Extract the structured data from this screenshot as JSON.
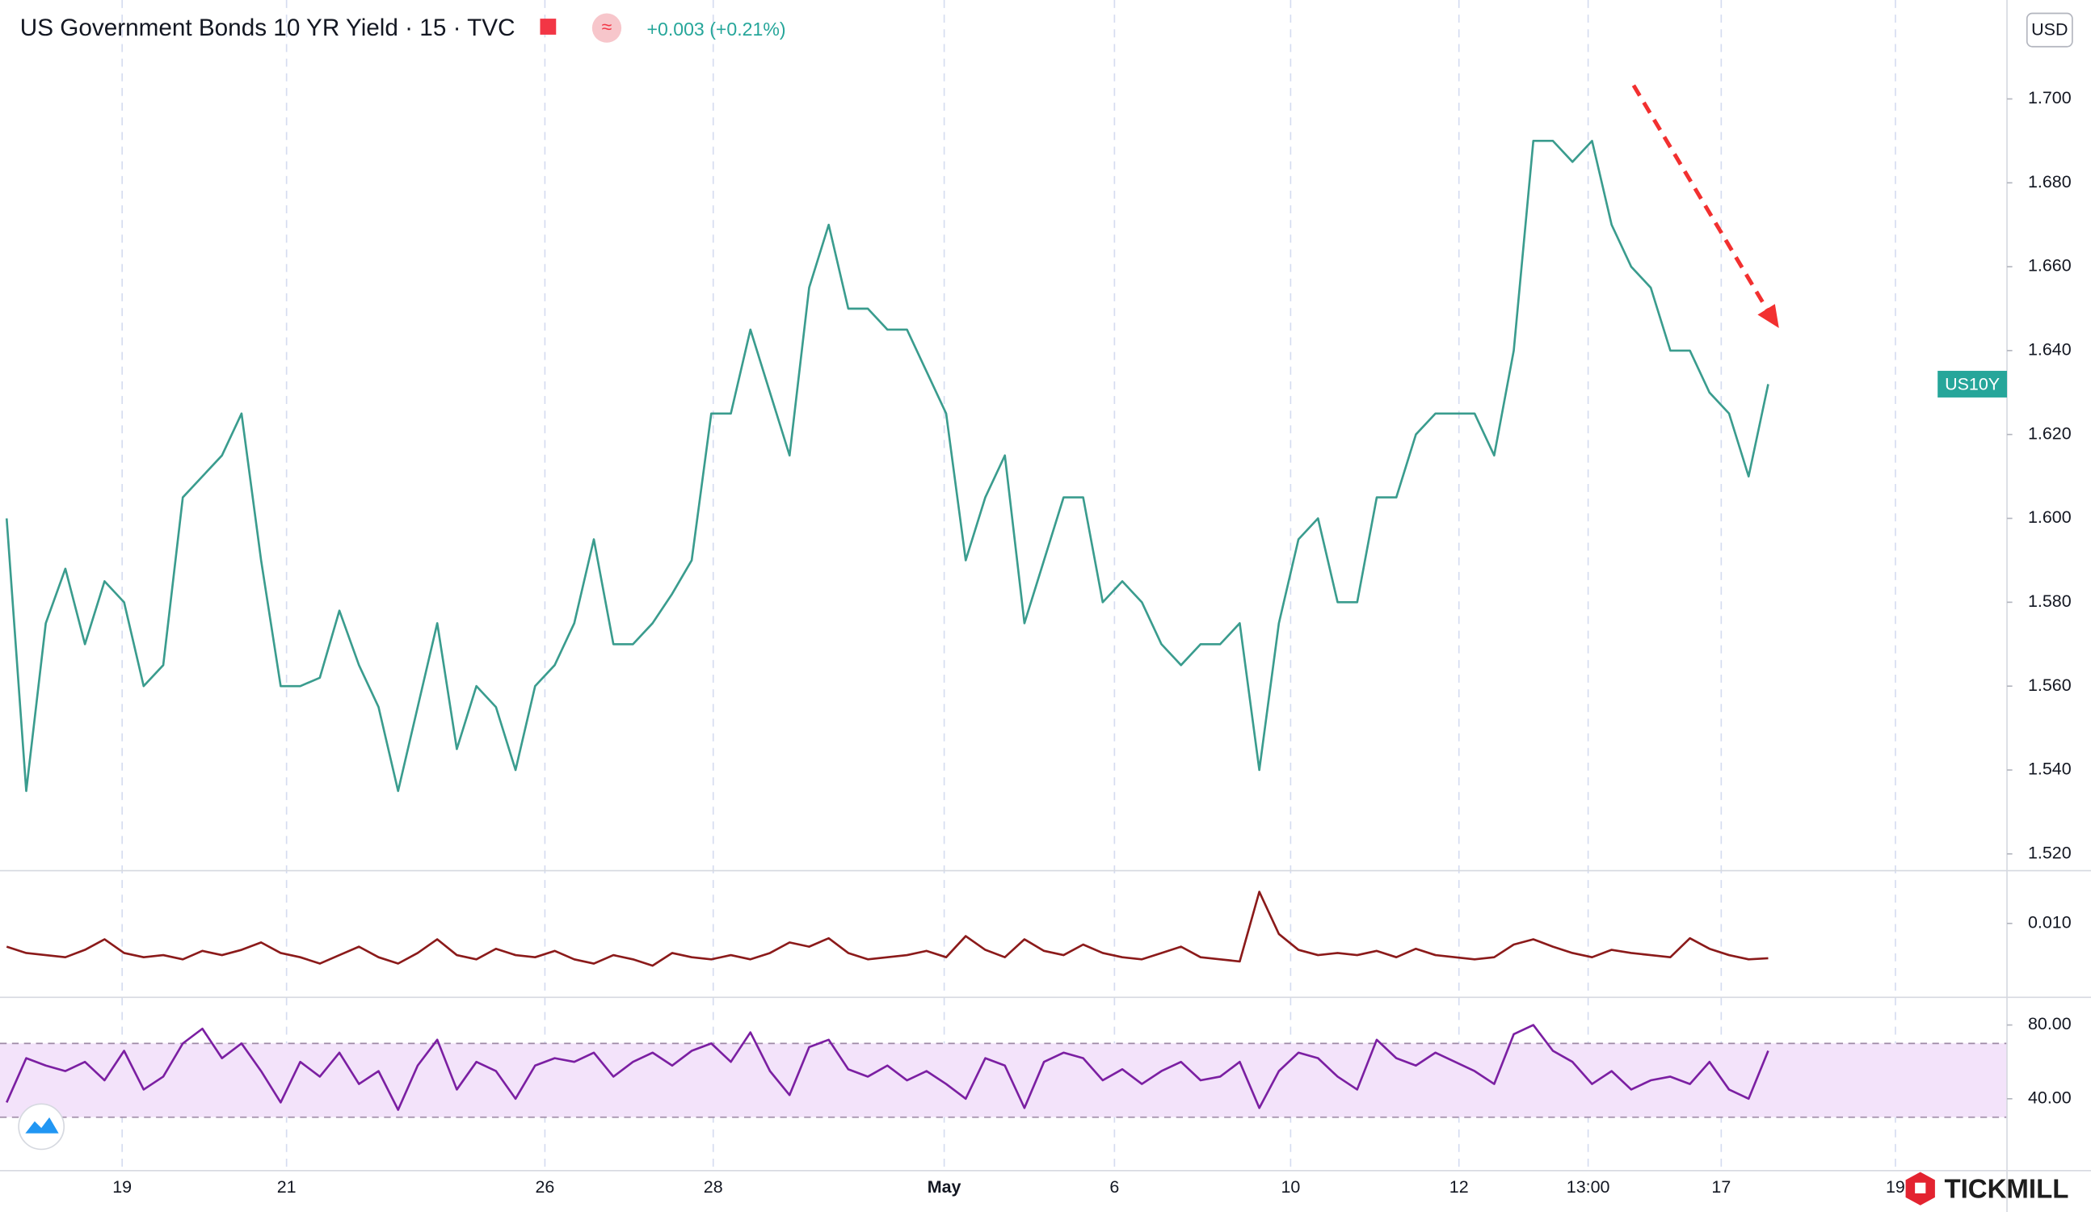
{
  "chart_data": [
    {
      "type": "line",
      "title": "US Government Bonds 10 YR Yield · 15 · TVC",
      "change_label": "+0.003 (+0.21%)",
      "currency": "USD",
      "symbol_label": "US10Y",
      "brand": "TICKMILL",
      "color": "#3a9c8e",
      "grid": true,
      "x": [
        0,
        1,
        2,
        3,
        4,
        5,
        6,
        7,
        8,
        9,
        10,
        11,
        12,
        13,
        14,
        15,
        16,
        17,
        18,
        19,
        20,
        21,
        22,
        23,
        24,
        25,
        26,
        27,
        28,
        29,
        30,
        31,
        32,
        33,
        34,
        35,
        36,
        37,
        38,
        39,
        40,
        41,
        42,
        43,
        44,
        45,
        46,
        47,
        48,
        49,
        50,
        51,
        52,
        53,
        54,
        55,
        56,
        57,
        58,
        59,
        60,
        61,
        62,
        63,
        64,
        65,
        66,
        67,
        68,
        69,
        70,
        71,
        72,
        73,
        74,
        75,
        76,
        77,
        78,
        79,
        80,
        81,
        82,
        83,
        84,
        85,
        86,
        87,
        88,
        89,
        90
      ],
      "values": [
        1.6,
        1.535,
        1.575,
        1.588,
        1.57,
        1.585,
        1.58,
        1.56,
        1.565,
        1.605,
        1.61,
        1.615,
        1.625,
        1.59,
        1.56,
        1.56,
        1.562,
        1.578,
        1.565,
        1.555,
        1.535,
        1.555,
        1.575,
        1.545,
        1.56,
        1.555,
        1.54,
        1.56,
        1.565,
        1.575,
        1.595,
        1.57,
        1.57,
        1.575,
        1.582,
        1.59,
        1.625,
        1.625,
        1.645,
        1.63,
        1.615,
        1.655,
        1.67,
        1.65,
        1.65,
        1.645,
        1.645,
        1.635,
        1.625,
        1.59,
        1.605,
        1.615,
        1.575,
        1.59,
        1.605,
        1.605,
        1.58,
        1.585,
        1.58,
        1.57,
        1.565,
        1.57,
        1.57,
        1.575,
        1.54,
        1.575,
        1.595,
        1.6,
        1.58,
        1.58,
        1.605,
        1.605,
        1.62,
        1.625,
        1.625,
        1.625,
        1.615,
        1.64,
        1.69,
        1.69,
        1.685,
        1.69,
        1.67,
        1.66,
        1.655,
        1.64,
        1.64,
        1.63,
        1.625,
        1.61,
        1.632
      ],
      "xlim": [
        -0.34,
        102.2
      ],
      "ylim": [
        1.516,
        1.722
      ],
      "xticks": [
        {
          "value": 5.9,
          "label": "19"
        },
        {
          "value": 14.3,
          "label": "21"
        },
        {
          "value": 27.5,
          "label": "26"
        },
        {
          "value": 36.1,
          "label": "28"
        },
        {
          "value": 47.9,
          "label": "May"
        },
        {
          "value": 56.6,
          "label": "6"
        },
        {
          "value": 65.6,
          "label": "10"
        },
        {
          "value": 74.2,
          "label": "12"
        },
        {
          "value": 80.8,
          "label": "13:00"
        },
        {
          "value": 87.6,
          "label": "17"
        },
        {
          "value": 96.5,
          "label": "19"
        }
      ],
      "yticks": [
        {
          "value": 1.52,
          "label": "1.520"
        },
        {
          "value": 1.54,
          "label": "1.540"
        },
        {
          "value": 1.56,
          "label": "1.560"
        },
        {
          "value": 1.58,
          "label": "1.580"
        },
        {
          "value": 1.6,
          "label": "1.600"
        },
        {
          "value": 1.62,
          "label": "1.620"
        },
        {
          "value": 1.64,
          "label": "1.640"
        },
        {
          "value": 1.66,
          "label": "1.660"
        },
        {
          "value": 1.68,
          "label": "1.680"
        },
        {
          "value": 1.7,
          "label": "1.700"
        }
      ]
    },
    {
      "type": "line",
      "color": "#8b1a1a",
      "x": [
        0,
        1,
        2,
        3,
        4,
        5,
        6,
        7,
        8,
        9,
        10,
        11,
        12,
        13,
        14,
        15,
        16,
        17,
        18,
        19,
        20,
        21,
        22,
        23,
        24,
        25,
        26,
        27,
        28,
        29,
        30,
        31,
        32,
        33,
        34,
        35,
        36,
        37,
        38,
        39,
        40,
        41,
        42,
        43,
        44,
        45,
        46,
        47,
        48,
        49,
        50,
        51,
        52,
        53,
        54,
        55,
        56,
        57,
        58,
        59,
        60,
        61,
        62,
        63,
        64,
        65,
        66,
        67,
        68,
        69,
        70,
        71,
        72,
        73,
        74,
        75,
        76,
        77,
        78,
        79,
        80,
        81,
        82,
        83,
        84,
        85,
        86,
        87,
        88,
        89,
        90
      ],
      "values": [
        0.0078,
        0.0072,
        0.007,
        0.0068,
        0.0075,
        0.0085,
        0.0072,
        0.0068,
        0.007,
        0.0066,
        0.0074,
        0.007,
        0.0075,
        0.0082,
        0.0072,
        0.0068,
        0.0062,
        0.007,
        0.0078,
        0.0068,
        0.0062,
        0.0072,
        0.0085,
        0.007,
        0.0066,
        0.0076,
        0.007,
        0.0068,
        0.0074,
        0.0066,
        0.0062,
        0.007,
        0.0066,
        0.006,
        0.0072,
        0.0068,
        0.0066,
        0.007,
        0.0066,
        0.0072,
        0.0082,
        0.0078,
        0.0086,
        0.0072,
        0.0066,
        0.0068,
        0.007,
        0.0074,
        0.0068,
        0.0088,
        0.0075,
        0.0068,
        0.0085,
        0.0074,
        0.007,
        0.008,
        0.0072,
        0.0068,
        0.0066,
        0.0072,
        0.0078,
        0.0068,
        0.0066,
        0.0064,
        0.013,
        0.009,
        0.0075,
        0.007,
        0.0072,
        0.007,
        0.0074,
        0.0068,
        0.0076,
        0.007,
        0.0068,
        0.0066,
        0.0068,
        0.008,
        0.0085,
        0.0078,
        0.0072,
        0.0068,
        0.0075,
        0.0072,
        0.007,
        0.0068,
        0.0086,
        0.0076,
        0.007,
        0.0066,
        0.0067
      ],
      "xlim": [
        -0.34,
        102.2
      ],
      "ylim": [
        0.003,
        0.015
      ],
      "yticks": [
        {
          "value": 0.01,
          "label": "0.010"
        }
      ]
    },
    {
      "type": "line",
      "color": "#7b1fa2",
      "band": [
        30,
        70
      ],
      "x": [
        0,
        1,
        2,
        3,
        4,
        5,
        6,
        7,
        8,
        9,
        10,
        11,
        12,
        13,
        14,
        15,
        16,
        17,
        18,
        19,
        20,
        21,
        22,
        23,
        24,
        25,
        26,
        27,
        28,
        29,
        30,
        31,
        32,
        33,
        34,
        35,
        36,
        37,
        38,
        39,
        40,
        41,
        42,
        43,
        44,
        45,
        46,
        47,
        48,
        49,
        50,
        51,
        52,
        53,
        54,
        55,
        56,
        57,
        58,
        59,
        60,
        61,
        62,
        63,
        64,
        65,
        66,
        67,
        68,
        69,
        70,
        71,
        72,
        73,
        74,
        75,
        76,
        77,
        78,
        79,
        80,
        81,
        82,
        83,
        84,
        85,
        86,
        87,
        88,
        89,
        90
      ],
      "values": [
        38,
        62,
        58,
        55,
        60,
        50,
        66,
        45,
        52,
        70,
        78,
        62,
        70,
        55,
        38,
        60,
        52,
        65,
        48,
        55,
        34,
        58,
        72,
        45,
        60,
        55,
        40,
        58,
        62,
        60,
        65,
        52,
        60,
        65,
        58,
        66,
        70,
        60,
        76,
        55,
        42,
        68,
        72,
        56,
        52,
        58,
        50,
        55,
        48,
        40,
        62,
        58,
        35,
        60,
        65,
        62,
        50,
        56,
        48,
        55,
        60,
        50,
        52,
        60,
        35,
        55,
        65,
        62,
        52,
        45,
        72,
        62,
        58,
        65,
        60,
        55,
        48,
        75,
        80,
        66,
        60,
        48,
        55,
        45,
        50,
        52,
        48,
        60,
        45,
        40,
        66
      ],
      "xlim": [
        -0.34,
        102.2
      ],
      "ylim": [
        1,
        95
      ],
      "yticks": [
        {
          "value": 40,
          "label": "40.00"
        },
        {
          "value": 80,
          "label": "80.00"
        }
      ]
    }
  ]
}
